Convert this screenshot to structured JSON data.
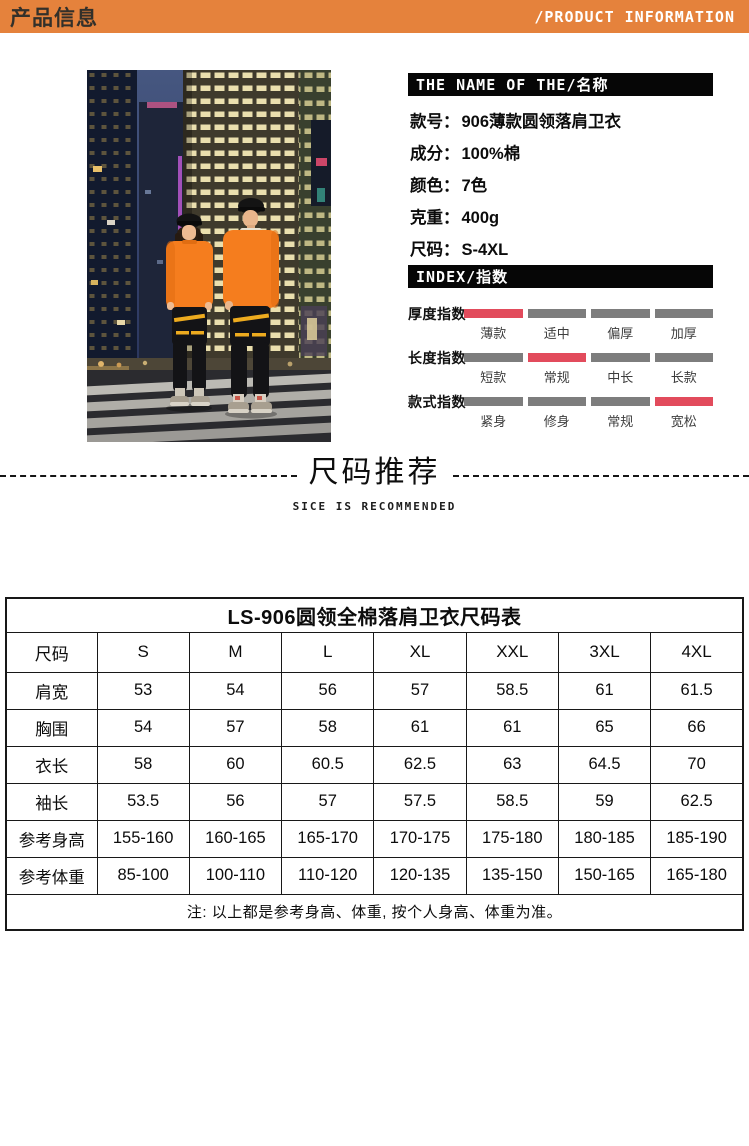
{
  "top_bar": {
    "title_cn": "产品信息",
    "title_en": "/PRODUCT INFORMATION",
    "bg": "#E5823C"
  },
  "product": {
    "section_title": "THE NAME OF THE/名称",
    "colon": "：",
    "fields": [
      {
        "label": "款号",
        "value": "906薄款圆领落肩卫衣"
      },
      {
        "label": "成分",
        "value": "100%棉"
      },
      {
        "label": "颜色",
        "value": "7色"
      },
      {
        "label": "克重",
        "value": "400g"
      },
      {
        "label": "尺码",
        "value": "S-4XL"
      }
    ]
  },
  "index": {
    "section_title": "INDEX/指数",
    "active_color": "#E24B5C",
    "inactive_color": "#7D7D7D",
    "rows": [
      {
        "label": "厚度指数",
        "options": [
          "薄款",
          "适中",
          "偏厚",
          "加厚"
        ],
        "active": 0
      },
      {
        "label": "长度指数",
        "options": [
          "短款",
          "常规",
          "中长",
          "长款"
        ],
        "active": 1
      },
      {
        "label": "款式指数",
        "options": [
          "紧身",
          "修身",
          "常规",
          "宽松"
        ],
        "active": 3
      }
    ]
  },
  "divider": {
    "title": "尺码推荐",
    "subtitle": "SICE IS RECOMMENDED"
  },
  "size_table": {
    "title": "LS-906圆领全棉落肩卫衣尺码表",
    "columns": [
      "尺码",
      "S",
      "M",
      "L",
      "XL",
      "XXL",
      "3XL",
      "4XL"
    ],
    "rows": [
      {
        "label": "肩宽",
        "values": [
          "53",
          "54",
          "56",
          "57",
          "58.5",
          "61",
          "61.5"
        ]
      },
      {
        "label": "胸围",
        "values": [
          "54",
          "57",
          "58",
          "61",
          "61",
          "65",
          "66"
        ]
      },
      {
        "label": "衣长",
        "values": [
          "58",
          "60",
          "60.5",
          "62.5",
          "63",
          "64.5",
          "70"
        ]
      },
      {
        "label": "袖长",
        "values": [
          "53.5",
          "56",
          "57",
          "57.5",
          "58.5",
          "59",
          "62.5"
        ]
      },
      {
        "label": "参考身高",
        "values": [
          "155-160",
          "160-165",
          "165-170",
          "170-175",
          "175-180",
          "180-185",
          "185-190"
        ]
      },
      {
        "label": "参考体重",
        "values": [
          "85-100",
          "100-110",
          "110-120",
          "120-135",
          "135-150",
          "150-165",
          "165-180"
        ]
      }
    ],
    "note": "注: 以上都是参考身高、体重, 按个人身高、体重为准。"
  },
  "photo": {
    "description": "couple wearing orange crew-neck sweatshirts and black caps on a night city street"
  }
}
